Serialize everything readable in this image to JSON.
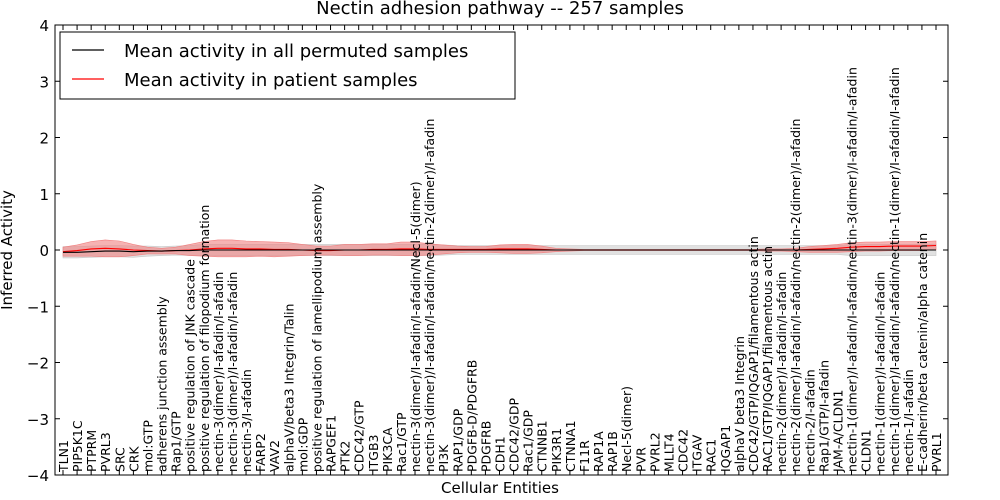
{
  "chart_data": {
    "type": "line",
    "title": "Nectin adhesion pathway -- 257 samples",
    "xlabel": "Cellular Entities",
    "ylabel": "Inferred Activity",
    "ylim": [
      -4,
      4
    ],
    "yticks": [
      "−4",
      "−3",
      "−2",
      "−1",
      "0",
      "1",
      "2",
      "3",
      "4"
    ],
    "grid": false,
    "legend_position": "top-left",
    "categories": [
      "TLN1",
      "PIP5K1C",
      "PTPRM",
      "PVRL3",
      "SRC",
      "CRK",
      "mol:GTP",
      "adherens junction assembly",
      "Rap1/GTP",
      "positive regulation of JNK cascade",
      "positive regulation of filopodium formation",
      "nectin-3(dimer)/I-afadin/I-afadin",
      "nectin-3(dimer)/I-afadin/I-afadin",
      "nectin-3/I-afadin",
      "FARP2",
      "VAV2",
      "alphaV/beta3 Integrin/Talin",
      "mol:GDP",
      "positive regulation of lamellipodium assembly",
      "RAPGEF1",
      "PTK2",
      "CDC42/GTP",
      "ITGB3",
      "PIK3CA",
      "Rac1/GTP",
      "nectin-3(dimer)/I-afadin/I-afadin/Necl-5(dimer)",
      "nectin-3(dimer)/I-afadin/I-afadin/nectin-2(dimer)/I-afadin",
      "PI3K",
      "RAP1/GDP",
      "PDGFB-D/PDGFRB",
      "PDGFRB",
      "CDH1",
      "CDC42/GDP",
      "Rac1/GDP",
      "CTNNB1",
      "PIK3R1",
      "CTNNA1",
      "F11R",
      "RAP1A",
      "RAP1B",
      "Necl-5(dimer)",
      "PVR",
      "PVRL2",
      "MLLT4",
      "CDC42",
      "ITGAV",
      "RAC1",
      "IQGAP1",
      "alphaV beta3 Integrin",
      "CDC42/GTP/IQGAP1/filamentous actin",
      "RAC1/GTP/IQGAP1/filamentous actin",
      "nectin-2(dimer)/I-afadin/I-afadin",
      "nectin-2(dimer)/I-afadin/I-afadin/nectin-2(dimer)/I-afadin",
      "nectin-2/I-afadin",
      "Rap1/GTP/I-afadin",
      "JAM-A/CLDN1",
      "nectin-1(dimer)/I-afadin/I-afadin/nectin-3(dimer)/I-afadin/I-afadin",
      "CLDN1",
      "nectin-1(dimer)/I-afadin/I-afadin",
      "nectin-1(dimer)/I-afadin/I-afadin/nectin-1(dimer)/I-afadin/I-afadin",
      "nectin-1/I-afadin",
      "E-cadherin/beta catenin/alpha catenin",
      "PVRL1"
    ],
    "series": [
      {
        "name": "Mean activity in all permuted samples",
        "color": "#000000",
        "band_color": "#c8c8c8",
        "values": [
          -0.04,
          -0.04,
          -0.03,
          -0.02,
          -0.02,
          -0.03,
          -0.02,
          -0.02,
          -0.01,
          -0.01,
          0.0,
          0.0,
          0.0,
          0.0,
          0.0,
          0.0,
          0.0,
          0.0,
          0.0,
          0.0,
          0.0,
          0.0,
          0.0,
          0.0,
          0.0,
          0.0,
          0.0,
          0.0,
          0.0,
          0.0,
          0.0,
          0.0,
          0.0,
          0.0,
          0.0,
          0.0,
          0.0,
          0.0,
          0.0,
          0.0,
          0.0,
          0.0,
          0.0,
          0.0,
          0.0,
          0.0,
          0.0,
          0.0,
          0.0,
          0.0,
          0.0,
          0.0,
          0.0,
          0.0,
          0.0,
          0.0,
          0.0,
          0.0,
          0.0,
          0.0,
          0.0,
          0.0,
          0.0
        ],
        "band": [
          0.1,
          0.1,
          0.1,
          0.1,
          0.1,
          0.1,
          0.09,
          0.08,
          0.08,
          0.09,
          0.1,
          0.1,
          0.1,
          0.1,
          0.1,
          0.1,
          0.1,
          0.1,
          0.1,
          0.1,
          0.1,
          0.1,
          0.1,
          0.1,
          0.1,
          0.1,
          0.1,
          0.09,
          0.08,
          0.08,
          0.08,
          0.08,
          0.08,
          0.08,
          0.08,
          0.08,
          0.08,
          0.08,
          0.08,
          0.08,
          0.08,
          0.08,
          0.08,
          0.08,
          0.08,
          0.08,
          0.08,
          0.08,
          0.08,
          0.08,
          0.08,
          0.08,
          0.08,
          0.08,
          0.08,
          0.08,
          0.1,
          0.1,
          0.1,
          0.1,
          0.1,
          0.1,
          0.1
        ]
      },
      {
        "name": "Mean activity in patient samples",
        "color": "#ff0000",
        "band_color": "#f08080",
        "values": [
          -0.03,
          -0.01,
          0.02,
          0.03,
          0.02,
          0.0,
          -0.01,
          -0.02,
          -0.01,
          0.0,
          0.02,
          0.03,
          0.03,
          0.02,
          0.02,
          0.01,
          0.01,
          0.0,
          -0.01,
          -0.01,
          0.0,
          0.0,
          0.01,
          0.01,
          0.02,
          0.02,
          0.01,
          0.01,
          0.01,
          0.01,
          0.01,
          0.02,
          0.02,
          0.02,
          0.01,
          0.0,
          0.0,
          0.0,
          0.0,
          0.0,
          0.0,
          0.0,
          0.0,
          0.0,
          0.0,
          0.0,
          0.0,
          0.0,
          0.0,
          0.0,
          0.0,
          0.0,
          0.0,
          0.01,
          0.02,
          0.03,
          0.05,
          0.06,
          0.06,
          0.07,
          0.07,
          0.07,
          0.08
        ],
        "band": [
          0.08,
          0.1,
          0.13,
          0.15,
          0.14,
          0.1,
          0.06,
          0.05,
          0.06,
          0.1,
          0.13,
          0.15,
          0.15,
          0.14,
          0.13,
          0.13,
          0.12,
          0.1,
          0.08,
          0.08,
          0.1,
          0.1,
          0.1,
          0.1,
          0.12,
          0.12,
          0.1,
          0.08,
          0.06,
          0.05,
          0.05,
          0.07,
          0.08,
          0.08,
          0.06,
          0.03,
          0.02,
          0.01,
          0.01,
          0.01,
          0.01,
          0.01,
          0.01,
          0.01,
          0.01,
          0.01,
          0.01,
          0.01,
          0.01,
          0.01,
          0.02,
          0.02,
          0.03,
          0.05,
          0.06,
          0.07,
          0.08,
          0.08,
          0.08,
          0.08,
          0.08,
          0.08,
          0.08
        ]
      }
    ]
  }
}
